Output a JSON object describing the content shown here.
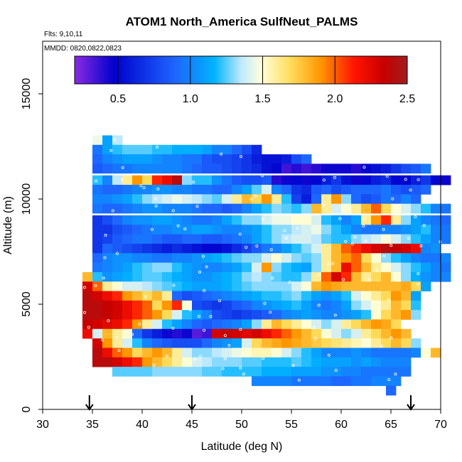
{
  "chart_data": {
    "type": "heatmap",
    "title": "ATOM1 North_America SulfNeut_PALMS",
    "subtitle_flights": "Flts: 9,10,11",
    "subtitle_dates": "MMDD: 0820,0822,0823",
    "xlabel": "Latitude (deg N)",
    "ylabel": "Altitude (m)",
    "xlim": [
      30,
      70
    ],
    "ylim": [
      0,
      17500
    ],
    "x_ticks": [
      "30",
      "35",
      "40",
      "45",
      "50",
      "55",
      "60",
      "65",
      "70"
    ],
    "y_ticks": [
      "0",
      "5000",
      "10000",
      "15000"
    ],
    "colorbar": {
      "min": 0.2,
      "max": 2.5,
      "ticks": [
        "0.5",
        "1.0",
        "1.5",
        "2.0",
        "2.5"
      ]
    },
    "flight_arrows_lat": [
      34.7,
      45.0,
      67.0
    ],
    "rows": [
      {
        "alt": 12800,
        "x0": 35.0,
        "values": [
          1.45,
          1.1,
          1.35
        ]
      },
      {
        "alt": 12350,
        "x0": 35.0,
        "values": [
          0.95,
          1.1,
          1.2,
          1.25,
          1.25,
          1.25,
          1.2,
          1.2,
          1.15,
          1.15,
          1.15,
          1.1,
          1.0,
          1.0,
          0.9,
          0.8,
          0.65
        ]
      },
      {
        "alt": 11900,
        "x0": 35.0,
        "values": [
          0.9,
          1.0,
          1.05,
          1.1,
          1.1,
          1.1,
          1.05,
          1.0,
          1.0,
          0.95,
          0.95,
          0.85,
          0.8,
          0.8,
          0.75,
          0.7,
          0.6,
          0.55,
          0.55,
          0.6,
          0.8,
          0.9
        ]
      },
      {
        "alt": 11450,
        "x0": 35.0,
        "values": [
          0.85,
          0.9,
          0.95,
          0.95,
          1.0,
          1.0,
          1.0,
          1.0,
          1.0,
          0.95,
          0.9,
          0.85,
          0.85,
          0.8,
          0.75,
          0.7,
          0.65,
          0.55,
          0.5,
          0.35,
          0.4,
          0.35,
          0.4,
          0.45,
          0.45,
          0.45,
          0.4,
          0.5,
          0.55,
          0.6,
          0.7,
          0.8,
          0.85,
          0.95
        ]
      },
      {
        "alt": 10900,
        "x0": 35.0,
        "values": [
          1.2,
          1.0,
          1.35,
          1.6,
          1.9,
          1.7,
          2.1,
          2.2,
          2.4,
          1.3,
          1.2,
          1.2,
          1.05,
          0.95,
          0.85,
          0.8,
          0.8,
          0.85,
          0.4,
          0.45,
          0.5,
          0.45,
          0.5,
          0.6,
          0.7,
          0.55,
          0.45,
          0.5,
          0.6,
          0.65,
          0.5,
          0.5,
          0.6,
          0.7,
          0.5,
          0.45
        ]
      },
      {
        "alt": 10450,
        "x0": 35.0,
        "values": [
          0.95,
          0.9,
          0.9,
          0.95,
          1.0,
          1.0,
          1.05,
          1.05,
          1.0,
          1.0,
          0.95,
          0.95,
          0.9,
          0.9,
          1.0,
          1.1,
          1.25,
          1.4,
          1.0,
          0.9,
          0.7,
          0.65,
          0.85,
          0.9,
          0.8,
          0.85,
          0.9,
          0.9,
          0.9,
          0.95,
          0.85,
          0.8,
          0.85,
          0.9
        ]
      },
      {
        "alt": 10000,
        "x0": 35.0,
        "values": [
          1.0,
          1.0,
          1.05,
          1.1,
          1.2,
          1.3,
          1.35,
          1.4,
          1.45,
          1.4,
          1.35,
          1.3,
          1.25,
          1.4,
          1.6,
          1.8,
          1.7,
          1.9,
          1.6,
          1.2,
          0.75,
          0.6,
          0.9,
          1.6,
          1.9,
          1.3,
          0.9,
          0.8,
          0.85,
          0.95,
          0.9,
          1.0,
          0.9
        ]
      },
      {
        "alt": 9550,
        "x0": 35.0,
        "values": [
          0.95,
          0.9,
          0.9,
          0.95,
          1.0,
          1.05,
          1.05,
          1.0,
          1.0,
          1.0,
          0.95,
          0.9,
          0.9,
          0.85,
          0.9,
          1.0,
          1.1,
          1.2,
          1.3,
          1.25,
          1.2,
          1.3,
          1.8,
          1.6,
          1.4,
          1.5,
          1.6,
          1.8,
          2.0,
          1.7,
          1.5,
          1.4,
          1.3,
          1.2,
          1.0,
          0.95
        ]
      },
      {
        "alt": 9000,
        "x0": 35.0,
        "values": [
          0.7,
          0.8,
          0.9,
          1.0,
          1.05,
          1.05,
          1.1,
          1.1,
          1.05,
          1.0,
          0.95,
          0.95,
          1.0,
          1.1,
          1.2,
          1.3,
          1.3,
          1.4,
          1.45,
          1.45,
          1.5,
          1.5,
          1.4,
          1.2,
          1.1,
          1.0,
          1.1,
          1.6,
          1.9,
          2.1,
          1.6,
          1.3,
          1.1,
          1.0,
          0.95,
          0.9
        ]
      },
      {
        "alt": 8550,
        "x0": 35.0,
        "values": [
          0.7,
          0.7,
          0.8,
          0.85,
          0.9,
          0.95,
          1.0,
          1.0,
          1.05,
          1.05,
          1.1,
          1.1,
          1.05,
          1.0,
          1.0,
          1.05,
          1.1,
          1.2,
          1.3,
          1.3,
          1.35,
          1.4,
          1.45,
          1.3,
          1.2,
          1.1,
          1.0,
          0.95,
          0.95,
          1.0,
          1.0,
          1.05,
          1.1,
          1.2,
          1.0,
          0.95
        ]
      },
      {
        "alt": 8100,
        "x0": 35.0,
        "values": [
          0.7,
          0.75,
          0.85,
          0.9,
          0.95,
          0.95,
          0.9,
          0.85,
          0.85,
          0.9,
          0.9,
          0.85,
          0.85,
          0.9,
          0.95,
          1.0,
          1.1,
          1.2,
          1.3,
          1.35,
          1.4,
          1.4,
          1.35,
          1.25,
          1.2,
          1.2,
          1.3,
          1.35,
          1.4,
          1.5,
          1.4,
          1.3,
          1.2,
          1.1,
          1.0,
          0.95
        ]
      },
      {
        "alt": 7650,
        "x0": 35.0,
        "values": [
          0.7,
          0.9,
          0.85,
          0.8,
          0.75,
          0.7,
          0.65,
          0.6,
          0.65,
          0.6,
          0.55,
          0.5,
          0.5,
          0.55,
          0.65,
          0.75,
          0.85,
          0.95,
          1.0,
          1.1,
          1.2,
          1.3,
          1.4,
          1.6,
          1.8,
          2.0,
          2.1,
          2.2,
          2.3,
          2.4,
          2.35,
          2.3,
          2.2,
          1.0,
          1.05
        ]
      },
      {
        "alt": 7200,
        "x0": 35.0,
        "values": [
          0.9,
          1.0,
          1.05,
          1.05,
          1.0,
          1.0,
          0.95,
          0.95,
          1.0,
          1.0,
          1.05,
          1.1,
          1.15,
          1.2,
          1.25,
          1.3,
          1.3,
          1.4,
          1.5,
          1.4,
          1.3,
          1.25,
          1.3,
          1.6,
          1.8,
          1.9,
          2.0,
          1.7,
          1.5,
          1.3,
          1.2,
          1.1,
          1.0,
          0.95,
          0.95,
          1.0
        ]
      },
      {
        "alt": 6750,
        "x0": 35.0,
        "values": [
          0.95,
          1.0,
          1.05,
          1.1,
          1.2,
          1.25,
          1.3,
          1.3,
          1.2,
          1.1,
          1.05,
          1.0,
          1.0,
          1.05,
          1.1,
          1.2,
          1.4,
          1.9,
          1.3,
          1.2,
          1.15,
          1.1,
          1.3,
          1.6,
          1.8,
          2.2,
          2.0,
          1.8,
          1.6,
          1.5,
          1.4,
          1.3,
          1.2,
          1.1,
          1.0,
          0.95
        ]
      },
      {
        "alt": 6300,
        "x0": 34.0,
        "values": [
          1.8,
          1.2,
          1.05,
          1.1,
          1.15,
          1.2,
          1.25,
          1.25,
          1.2,
          1.15,
          1.1,
          1.05,
          1.05,
          1.1,
          1.15,
          1.2,
          1.3,
          1.35,
          1.3,
          1.25,
          1.2,
          1.2,
          1.3,
          1.6,
          2.0,
          2.3,
          2.1,
          1.8,
          1.6,
          1.7,
          1.8,
          1.5,
          1.3,
          1.15,
          1.05,
          1.0,
          1.0
        ]
      },
      {
        "alt": 5850,
        "x0": 34.0,
        "values": [
          2.3,
          2.0,
          1.6,
          1.5,
          1.4,
          1.4,
          1.35,
          1.3,
          1.25,
          1.2,
          1.15,
          1.1,
          1.1,
          1.1,
          1.15,
          1.2,
          1.25,
          1.3,
          1.3,
          1.3,
          1.3,
          1.4,
          1.5,
          1.8,
          1.9,
          1.85,
          1.8,
          1.8,
          1.8,
          1.8,
          1.8,
          1.8,
          1.85,
          1.7,
          1.1
        ]
      },
      {
        "alt": 5400,
        "x0": 34.0,
        "values": [
          2.4,
          2.3,
          2.2,
          2.1,
          1.9,
          1.8,
          1.7,
          1.8,
          1.6,
          0.9,
          0.8,
          0.85,
          0.9,
          0.95,
          1.0,
          1.05,
          1.1,
          1.15,
          1.2,
          1.2,
          1.25,
          1.3,
          1.2,
          1.1,
          1.05,
          1.1,
          1.2,
          1.4,
          1.5,
          1.6,
          1.7,
          1.9,
          1.8,
          1.1
        ]
      },
      {
        "alt": 4950,
        "x0": 34.0,
        "values": [
          2.4,
          2.4,
          2.35,
          2.3,
          2.2,
          2.1,
          2.0,
          1.7,
          1.9,
          2.1,
          1.5,
          0.8,
          0.75,
          0.7,
          0.75,
          0.85,
          0.9,
          1.0,
          1.05,
          1.1,
          1.15,
          1.2,
          1.1,
          1.0,
          0.95,
          1.0,
          1.1,
          1.3,
          1.4,
          1.5,
          1.6,
          1.8,
          1.7,
          1.2
        ]
      },
      {
        "alt": 4500,
        "x0": 34.0,
        "values": [
          2.4,
          2.4,
          2.35,
          2.3,
          2.2,
          2.1,
          2.0,
          1.9,
          1.7,
          1.4,
          1.2,
          1.1,
          1.0,
          0.8,
          0.75,
          0.7,
          0.75,
          0.8,
          0.85,
          0.9,
          1.0,
          1.05,
          1.1,
          1.05,
          1.0,
          1.0,
          1.05,
          1.1,
          1.2,
          1.5,
          1.7,
          1.8,
          1.9,
          1.3
        ]
      },
      {
        "alt": 4050,
        "x0": 34.0,
        "values": [
          2.35,
          2.3,
          2.25,
          2.2,
          2.1,
          1.9,
          1.6,
          1.4,
          1.2,
          1.1,
          1.0,
          0.9,
          0.85,
          0.9,
          0.95,
          1.0,
          1.1,
          1.3,
          1.6,
          1.8,
          1.7,
          1.6,
          1.5,
          1.4,
          1.3,
          1.4,
          1.6,
          1.7,
          1.8,
          1.9,
          1.85,
          1.7
        ]
      },
      {
        "alt": 3600,
        "x0": 34.0,
        "values": [
          2.2,
          1.4,
          1.8,
          1.6,
          1.5,
          0.9,
          0.7,
          0.6,
          0.45,
          0.4,
          0.45,
          0.3,
          0.35,
          2.3,
          2.35,
          2.3,
          2.25,
          2.3,
          2.2,
          2.1,
          2.0,
          1.9,
          1.8,
          1.7,
          1.5,
          1.4,
          1.3,
          1.4,
          1.6,
          1.7,
          1.8,
          1.9,
          1.8
        ]
      },
      {
        "alt": 3150,
        "x0": 35.0,
        "values": [
          2.3,
          1.9,
          1.6,
          1.4,
          1.2,
          1.0,
          0.9,
          0.85,
          0.8,
          0.8,
          0.8,
          0.9,
          1.0,
          1.05,
          1.1,
          1.4,
          1.7,
          1.8,
          1.85,
          1.9,
          1.85,
          1.8,
          1.75,
          1.7,
          1.65,
          1.6,
          1.55,
          1.5,
          1.6,
          1.7,
          1.8,
          1.7,
          1.3
        ]
      },
      {
        "alt": 2700,
        "x0": 35.0,
        "values": [
          2.4,
          2.2,
          2.0,
          1.9,
          1.7,
          1.8,
          1.9,
          1.8,
          1.6,
          1.4,
          1.3,
          1.3,
          1.35,
          1.4,
          1.45,
          1.5,
          1.55,
          1.55,
          1.5,
          1.4,
          1.3,
          1.2,
          1.1,
          1.0,
          1.0,
          1.0,
          1.05,
          1.0,
          0.95,
          0.95,
          0.95,
          0.95,
          1.0,
          1.5,
          1.8
        ]
      },
      {
        "alt": 2250,
        "x0": 35.0,
        "values": [
          2.4,
          2.4,
          2.3,
          2.2,
          2.1,
          1.9,
          1.8,
          1.7,
          1.6,
          1.5,
          1.4,
          1.35,
          1.3,
          1.3,
          1.3,
          1.25,
          1.25,
          1.2,
          1.2,
          1.2,
          1.25,
          1.2,
          1.15,
          1.1,
          1.1,
          1.1,
          1.05,
          1.1,
          1.05,
          1.0,
          1.0,
          1.0
        ]
      },
      {
        "alt": 1800,
        "x0": 37.0,
        "values": [
          1.25,
          1.25,
          1.25,
          1.25,
          1.3,
          1.3,
          1.3,
          1.3,
          1.3,
          1.25,
          1.25,
          1.2,
          1.2,
          1.2,
          1.2,
          1.15,
          1.15,
          1.15,
          1.1,
          1.1,
          1.1,
          1.05,
          1.05,
          1.0,
          1.0,
          0.95,
          0.95,
          0.95,
          0.95,
          0.95
        ]
      },
      {
        "alt": 1350,
        "x0": 51.0,
        "values": [
          1.0,
          1.0,
          1.0,
          1.0,
          0.95,
          0.95,
          0.95,
          0.95,
          0.9,
          0.9,
          0.95,
          0.95,
          1.0,
          1.0,
          1.0
        ]
      },
      {
        "alt": 900,
        "x0": 64.5,
        "values": [
          0.9
        ]
      }
    ]
  }
}
